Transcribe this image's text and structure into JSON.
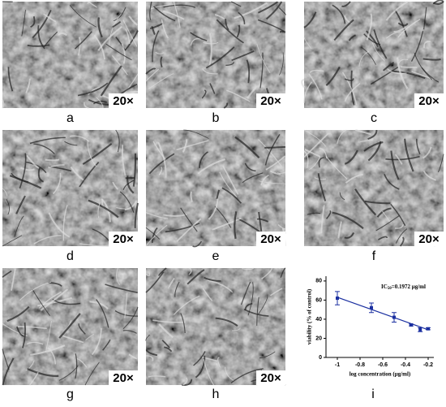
{
  "panels": [
    {
      "label": "a",
      "magnification": "20×"
    },
    {
      "label": "b",
      "magnification": "20×"
    },
    {
      "label": "c",
      "magnification": "20×"
    },
    {
      "label": "d",
      "magnification": "20×"
    },
    {
      "label": "e",
      "magnification": "20×"
    },
    {
      "label": "f",
      "magnification": "20×"
    },
    {
      "label": "g",
      "magnification": "20×"
    },
    {
      "label": "h",
      "magnification": "20×"
    }
  ],
  "chart_label": "i",
  "chart_data": {
    "type": "scatter",
    "annotation": {
      "prefix": "IC",
      "sub": "50",
      "rest": "=0.1972 μg/ml"
    },
    "x_label": "log concentration (μg/ml)",
    "y_label": "viability (% of control)",
    "x": [
      -1.0,
      -0.7,
      -0.5,
      -0.35,
      -0.27,
      -0.2
    ],
    "values": [
      62,
      52,
      42,
      34,
      29,
      30
    ],
    "errors": [
      7,
      5,
      5,
      1,
      2,
      1
    ],
    "color": "#1a2fa0",
    "fit": {
      "x": [
        -1.0,
        -0.2
      ],
      "y": [
        63,
        29
      ]
    },
    "xlim": [
      -1.1,
      -0.15
    ],
    "xticks": [
      -1.0,
      -0.8,
      -0.6,
      -0.4,
      -0.2
    ],
    "ylim": [
      0,
      85
    ],
    "yticks": [
      0,
      20,
      40,
      60,
      80
    ]
  }
}
